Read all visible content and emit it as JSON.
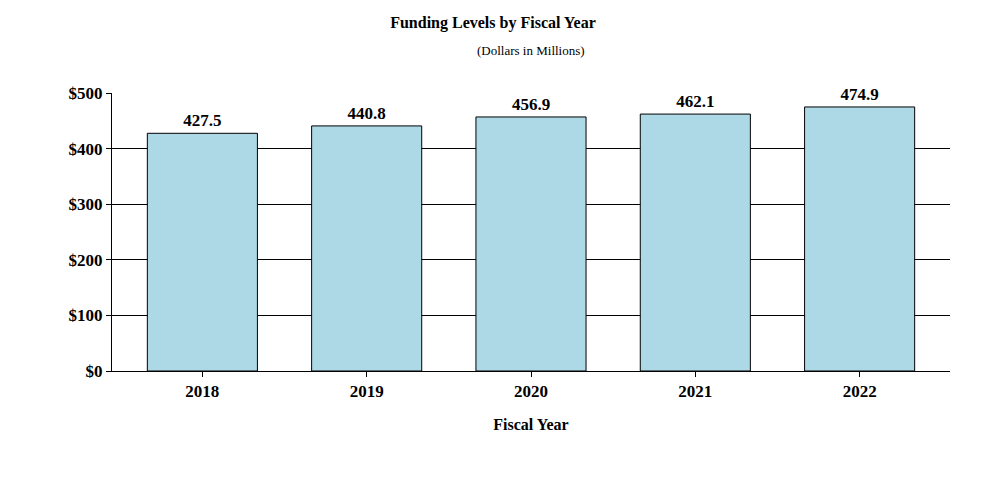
{
  "chart_data": {
    "type": "bar",
    "title": "Funding Levels by Fiscal Year",
    "subtitle": "(Dollars in Millions)",
    "x_label": "Fiscal Year",
    "categories": [
      "2018",
      "2019",
      "2020",
      "2021",
      "2022"
    ],
    "values": [
      427.5,
      440.8,
      456.9,
      462.1,
      474.9
    ],
    "color": "#add8e6",
    "ylim": [
      0,
      500
    ],
    "yticks": [
      {
        "value": 0,
        "label": "$0"
      },
      {
        "value": 100,
        "label": "$100"
      },
      {
        "value": 200,
        "label": "$200"
      },
      {
        "value": 300,
        "label": "$300"
      },
      {
        "value": 400,
        "label": "$400"
      },
      {
        "value": 500,
        "label": "$500"
      }
    ],
    "grid": true,
    "data_labels": true
  }
}
